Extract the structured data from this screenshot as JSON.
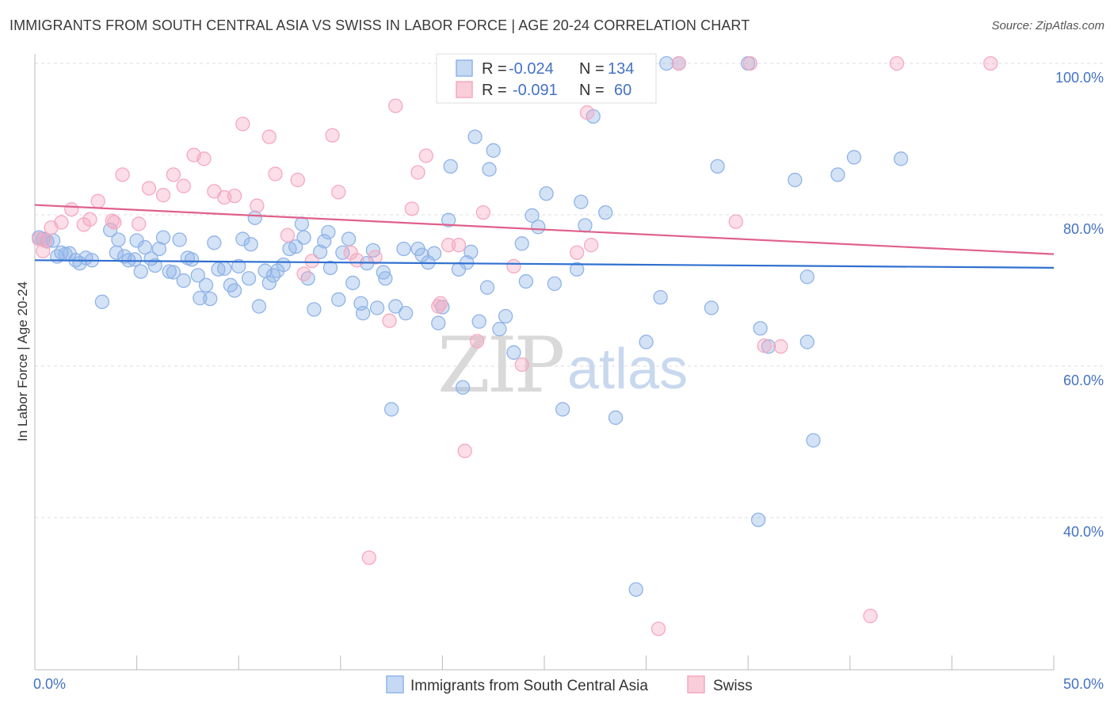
{
  "title": "IMMIGRANTS FROM SOUTH CENTRAL ASIA VS SWISS IN LABOR FORCE | AGE 20-24 CORRELATION CHART",
  "source": "Source: ZipAtlas.com",
  "watermark": {
    "zip": "ZIP",
    "atlas": "atlas"
  },
  "chart_data": {
    "type": "scatter",
    "ylabel": "In Labor Force | Age 20-24",
    "xlim": [
      0,
      50
    ],
    "ylim": [
      20,
      100
    ],
    "x_tick_labels": [
      "0.0%",
      "50.0%"
    ],
    "y_ticks": [
      {
        "value": 100,
        "label": "100.0%"
      },
      {
        "value": 80,
        "label": "80.0%"
      },
      {
        "value": 60,
        "label": "60.0%"
      },
      {
        "value": 40,
        "label": "40.0%"
      }
    ],
    "grid": "horizontal dashed",
    "legend": {
      "placement": "top-center",
      "rows": [
        {
          "r_label": "R =",
          "r_value": "-0.024",
          "n_label": "N =",
          "n_value": "134"
        },
        {
          "r_label": "R =",
          "r_value": "-0.091",
          "n_label": "N =",
          "n_value": "60"
        }
      ]
    },
    "series": [
      {
        "name": "Immigrants from South Central Asia",
        "color": "#8fb4e8",
        "line_color": "#3070d0",
        "trend": {
          "x": [
            0,
            50
          ],
          "y": [
            74.0,
            73.0
          ]
        },
        "points": [
          [
            0.2,
            77.0
          ],
          [
            0.4,
            76.8
          ],
          [
            0.6,
            76.5
          ],
          [
            0.9,
            76.6
          ],
          [
            1.1,
            74.5
          ],
          [
            1.3,
            75.0
          ],
          [
            1.5,
            74.8
          ],
          [
            1.7,
            74.9
          ],
          [
            2.0,
            74.0
          ],
          [
            2.2,
            73.6
          ],
          [
            2.5,
            74.3
          ],
          [
            2.8,
            74.0
          ],
          [
            3.3,
            68.5
          ],
          [
            3.7,
            78.0
          ],
          [
            4.0,
            75.0
          ],
          [
            4.1,
            76.7
          ],
          [
            4.4,
            74.5
          ],
          [
            4.6,
            74.0
          ],
          [
            4.9,
            74.1
          ],
          [
            5.0,
            76.6
          ],
          [
            5.2,
            72.5
          ],
          [
            5.4,
            75.7
          ],
          [
            5.7,
            74.2
          ],
          [
            5.9,
            73.3
          ],
          [
            6.1,
            75.5
          ],
          [
            6.3,
            77.0
          ],
          [
            6.6,
            72.5
          ],
          [
            6.8,
            72.4
          ],
          [
            7.1,
            76.7
          ],
          [
            7.3,
            71.3
          ],
          [
            7.5,
            74.3
          ],
          [
            7.7,
            74.1
          ],
          [
            8.0,
            72.0
          ],
          [
            8.1,
            69.0
          ],
          [
            8.4,
            70.7
          ],
          [
            8.6,
            68.9
          ],
          [
            8.8,
            76.3
          ],
          [
            9.0,
            72.8
          ],
          [
            9.3,
            72.9
          ],
          [
            9.6,
            70.7
          ],
          [
            9.8,
            70.0
          ],
          [
            10.0,
            73.2
          ],
          [
            10.2,
            76.8
          ],
          [
            10.5,
            71.6
          ],
          [
            10.6,
            76.1
          ],
          [
            10.8,
            79.6
          ],
          [
            11.0,
            67.9
          ],
          [
            11.3,
            72.6
          ],
          [
            11.5,
            71.0
          ],
          [
            11.7,
            72.0
          ],
          [
            11.9,
            72.6
          ],
          [
            12.2,
            73.4
          ],
          [
            12.5,
            75.5
          ],
          [
            12.8,
            75.8
          ],
          [
            13.1,
            78.8
          ],
          [
            13.2,
            77.0
          ],
          [
            13.4,
            71.6
          ],
          [
            13.7,
            67.5
          ],
          [
            14.0,
            75.1
          ],
          [
            14.2,
            76.5
          ],
          [
            14.4,
            77.7
          ],
          [
            14.5,
            73.0
          ],
          [
            14.9,
            68.8
          ],
          [
            15.1,
            75.0
          ],
          [
            15.4,
            76.8
          ],
          [
            15.6,
            71.0
          ],
          [
            16.0,
            68.3
          ],
          [
            16.1,
            67.0
          ],
          [
            16.3,
            73.6
          ],
          [
            16.6,
            75.3
          ],
          [
            16.8,
            67.7
          ],
          [
            17.1,
            72.4
          ],
          [
            17.2,
            71.6
          ],
          [
            17.5,
            54.3
          ],
          [
            17.7,
            67.9
          ],
          [
            18.1,
            75.5
          ],
          [
            18.2,
            67.0
          ],
          [
            18.8,
            75.5
          ],
          [
            19.0,
            74.7
          ],
          [
            19.3,
            73.7
          ],
          [
            19.6,
            74.9
          ],
          [
            19.8,
            65.7
          ],
          [
            20.0,
            67.8
          ],
          [
            20.3,
            79.3
          ],
          [
            20.4,
            86.4
          ],
          [
            20.8,
            72.8
          ],
          [
            21.0,
            57.2
          ],
          [
            21.2,
            73.7
          ],
          [
            21.4,
            75.1
          ],
          [
            21.6,
            90.3
          ],
          [
            21.8,
            65.9
          ],
          [
            22.2,
            70.4
          ],
          [
            22.3,
            86.0
          ],
          [
            22.5,
            88.5
          ],
          [
            22.8,
            64.9
          ],
          [
            23.1,
            66.6
          ],
          [
            23.5,
            61.8
          ],
          [
            23.9,
            76.2
          ],
          [
            24.1,
            71.2
          ],
          [
            24.4,
            79.9
          ],
          [
            24.7,
            78.4
          ],
          [
            25.1,
            82.8
          ],
          [
            25.5,
            70.9
          ],
          [
            25.9,
            54.3
          ],
          [
            26.2,
            100.0
          ],
          [
            26.6,
            72.8
          ],
          [
            26.8,
            81.7
          ],
          [
            27.0,
            78.6
          ],
          [
            27.4,
            93.0
          ],
          [
            28.0,
            80.3
          ],
          [
            28.5,
            53.2
          ],
          [
            29.5,
            30.5
          ],
          [
            30.0,
            63.2
          ],
          [
            30.7,
            69.1
          ],
          [
            31.0,
            100.0
          ],
          [
            31.6,
            100.0
          ],
          [
            33.2,
            67.7
          ],
          [
            33.5,
            86.4
          ],
          [
            35.0,
            100.0
          ],
          [
            35.5,
            39.7
          ],
          [
            35.6,
            65.0
          ],
          [
            36.0,
            62.6
          ],
          [
            37.3,
            84.6
          ],
          [
            37.9,
            63.2
          ],
          [
            37.9,
            71.8
          ],
          [
            38.2,
            50.2
          ],
          [
            39.4,
            85.3
          ],
          [
            40.2,
            87.6
          ],
          [
            42.5,
            87.4
          ]
        ]
      },
      {
        "name": "Swiss",
        "color": "#f5a9c0",
        "line_color": "#e0608a",
        "trend": {
          "x": [
            0,
            50
          ],
          "y": [
            81.3,
            74.8
          ]
        },
        "points": [
          [
            0.2,
            76.8
          ],
          [
            0.4,
            75.2
          ],
          [
            0.5,
            76.6
          ],
          [
            0.8,
            78.3
          ],
          [
            1.3,
            79.0
          ],
          [
            1.8,
            80.7
          ],
          [
            2.4,
            78.7
          ],
          [
            2.7,
            79.4
          ],
          [
            3.1,
            81.8
          ],
          [
            3.8,
            79.2
          ],
          [
            3.9,
            79.0
          ],
          [
            4.3,
            85.3
          ],
          [
            5.1,
            78.8
          ],
          [
            5.6,
            83.5
          ],
          [
            6.3,
            82.6
          ],
          [
            6.8,
            85.3
          ],
          [
            7.3,
            83.8
          ],
          [
            7.8,
            87.9
          ],
          [
            8.3,
            87.4
          ],
          [
            8.8,
            83.1
          ],
          [
            9.3,
            82.3
          ],
          [
            9.8,
            82.5
          ],
          [
            10.2,
            92.0
          ],
          [
            10.9,
            81.2
          ],
          [
            11.5,
            90.3
          ],
          [
            11.8,
            85.4
          ],
          [
            12.4,
            77.3
          ],
          [
            12.9,
            84.6
          ],
          [
            13.2,
            72.2
          ],
          [
            13.6,
            73.9
          ],
          [
            14.6,
            90.5
          ],
          [
            14.9,
            83.0
          ],
          [
            15.5,
            75.0
          ],
          [
            15.8,
            74.0
          ],
          [
            16.7,
            74.4
          ],
          [
            17.4,
            66.0
          ],
          [
            17.7,
            94.4
          ],
          [
            18.5,
            80.8
          ],
          [
            18.8,
            85.6
          ],
          [
            19.2,
            87.8
          ],
          [
            19.8,
            67.9
          ],
          [
            19.9,
            68.3
          ],
          [
            20.3,
            76.0
          ],
          [
            20.8,
            76.0
          ],
          [
            21.1,
            48.8
          ],
          [
            21.7,
            63.3
          ],
          [
            22.0,
            80.3
          ],
          [
            22.6,
            100.0
          ],
          [
            23.5,
            73.2
          ],
          [
            23.9,
            60.2
          ],
          [
            25.9,
            100.0
          ],
          [
            26.6,
            75.0
          ],
          [
            27.1,
            93.5
          ],
          [
            27.3,
            76.0
          ],
          [
            30.6,
            25.3
          ],
          [
            31.6,
            100.0
          ],
          [
            34.4,
            79.1
          ],
          [
            35.1,
            100.0
          ],
          [
            35.8,
            62.7
          ],
          [
            36.6,
            62.6
          ],
          [
            41.0,
            27.0
          ],
          [
            42.3,
            100.0
          ],
          [
            46.9,
            100.0
          ],
          [
            16.4,
            34.7
          ]
        ]
      }
    ]
  }
}
